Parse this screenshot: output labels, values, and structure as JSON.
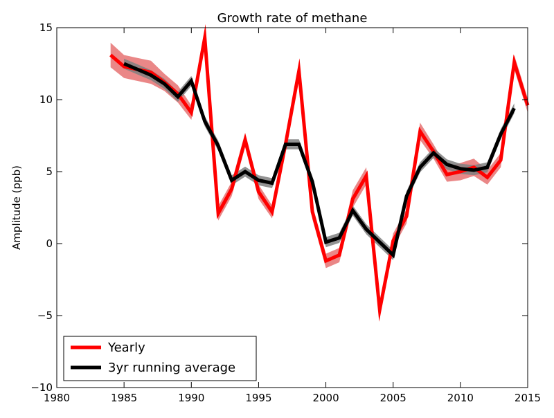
{
  "chart_data": {
    "type": "line",
    "title": "Growth rate of methane",
    "xlabel": "",
    "ylabel": "Amplitude (ppb)",
    "xlim": [
      1980,
      2015
    ],
    "ylim": [
      -10,
      15
    ],
    "xticks": [
      1980,
      1985,
      1990,
      1995,
      2000,
      2005,
      2010,
      2015
    ],
    "yticks": [
      -10,
      -5,
      0,
      5,
      10,
      15
    ],
    "ytick_labels": [
      "−10",
      "−5",
      "0",
      "5",
      "10",
      "15"
    ],
    "grid": false,
    "legend_position": "bottom-left",
    "series": [
      {
        "name": "Yearly",
        "color": "#ff0000",
        "band_color": "#e87a7a",
        "x": [
          1984,
          1985,
          1986,
          1987,
          1988,
          1989,
          1990,
          1991,
          1992,
          1993,
          1994,
          1995,
          1996,
          1997,
          1998,
          1999,
          2000,
          2001,
          2002,
          2003,
          2004,
          2005,
          2006,
          2007,
          2008,
          2009,
          2010,
          2011,
          2012,
          2013,
          2014,
          2015
        ],
        "values": [
          13.1,
          12.3,
          12.1,
          11.9,
          11.2,
          10.4,
          9.1,
          14.3,
          2.1,
          3.8,
          7.2,
          3.6,
          2.2,
          6.9,
          12.0,
          2.2,
          -1.2,
          -0.8,
          3.1,
          4.7,
          -4.6,
          0.2,
          1.9,
          7.8,
          6.4,
          4.8,
          5.0,
          5.3,
          4.6,
          5.8,
          12.6,
          9.6
        ],
        "band": [
          0.85,
          0.8,
          0.8,
          0.8,
          0.6,
          0.6,
          0.5,
          0.6,
          0.5,
          0.5,
          0.5,
          0.5,
          0.45,
          0.5,
          0.6,
          0.5,
          0.5,
          0.5,
          0.6,
          0.6,
          0.5,
          0.5,
          0.5,
          0.6,
          0.5,
          0.5,
          0.6,
          0.6,
          0.5,
          0.5,
          0.5,
          0.5
        ]
      },
      {
        "name": "3yr running average",
        "color": "#000000",
        "band_color": "#808080",
        "x": [
          1985,
          1986,
          1987,
          1988,
          1989,
          1990,
          1991,
          1992,
          1993,
          1994,
          1995,
          1996,
          1997,
          1998,
          1999,
          2000,
          2001,
          2002,
          2003,
          2004,
          2005,
          2006,
          2007,
          2008,
          2009,
          2010,
          2011,
          2012,
          2013,
          2014
        ],
        "values": [
          12.5,
          12.1,
          11.7,
          11.1,
          10.2,
          11.3,
          8.5,
          6.8,
          4.4,
          5.0,
          4.4,
          4.2,
          6.9,
          6.9,
          4.3,
          0.1,
          0.4,
          2.3,
          1.0,
          0.1,
          -0.8,
          3.3,
          5.3,
          6.3,
          5.5,
          5.2,
          5.1,
          5.3,
          7.6,
          9.4
        ]
      }
    ]
  }
}
